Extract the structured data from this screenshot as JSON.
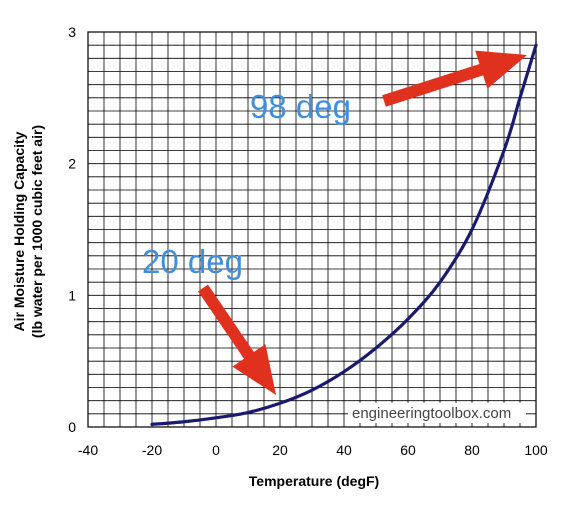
{
  "chart_data": {
    "type": "line",
    "xlabel": "Temperature (degF)",
    "ylabel_line1": "Air Moisture Holding Capacity",
    "ylabel_line2": "(lb water per 1000 cubic feet air)",
    "xlim": [
      -40,
      100
    ],
    "ylim": [
      0,
      3
    ],
    "x_ticks": [
      -40,
      -20,
      0,
      20,
      40,
      60,
      80,
      100
    ],
    "y_ticks": [
      0,
      1,
      2,
      3
    ],
    "grid": true,
    "series": [
      {
        "color": "#1a1a6e",
        "points": [
          [
            -20,
            0.02
          ],
          [
            -10,
            0.04
          ],
          [
            0,
            0.07
          ],
          [
            10,
            0.11
          ],
          [
            20,
            0.18
          ],
          [
            30,
            0.28
          ],
          [
            40,
            0.42
          ],
          [
            50,
            0.6
          ],
          [
            60,
            0.82
          ],
          [
            70,
            1.1
          ],
          [
            80,
            1.5
          ],
          [
            90,
            2.1
          ],
          [
            95,
            2.5
          ],
          [
            100,
            2.9
          ]
        ]
      }
    ],
    "annotations": [
      {
        "text": "98 deg",
        "color": "#3f8fdc",
        "arrow_color": "#e0301e"
      },
      {
        "text": "20 deg",
        "color": "#3f8fdc",
        "arrow_color": "#e0301e"
      }
    ],
    "watermark": "engineeringtoolbox.com"
  }
}
